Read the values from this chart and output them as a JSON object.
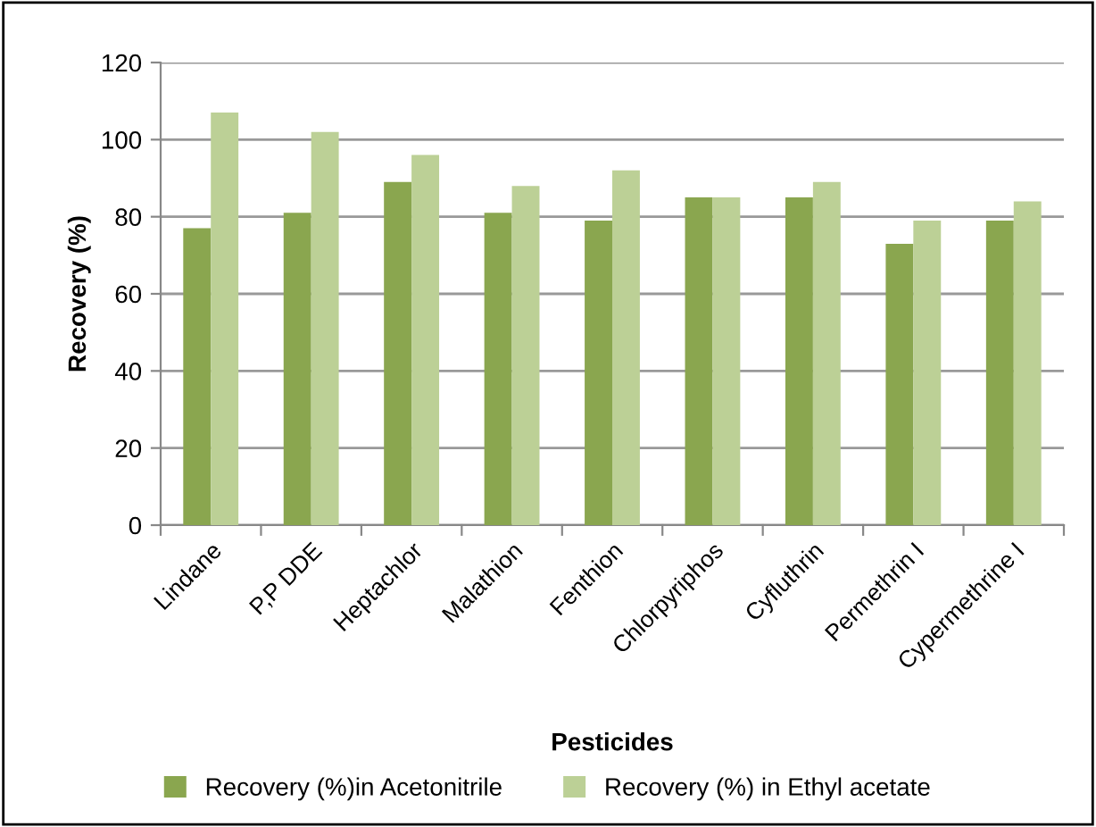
{
  "chart_data": {
    "type": "bar",
    "xlabel": "Pesticides",
    "ylabel": "Recovery (%)",
    "categories": [
      "Lindane",
      "P,P DDE",
      "Heptachlor",
      "Malathion",
      "Fenthion",
      "Chlorpyriphos",
      "Cyfluthrin",
      "Permethrin I",
      "Cypermethrine I"
    ],
    "series": [
      {
        "name": "Recovery (%)in Acetonitrile",
        "color": "#8aa64f",
        "values": [
          77,
          81,
          89,
          81,
          79,
          85,
          85,
          73,
          79
        ]
      },
      {
        "name": "Recovery (%) in Ethyl acetate",
        "color": "#bcd096",
        "values": [
          107,
          102,
          96,
          88,
          92,
          85,
          89,
          79,
          84
        ]
      }
    ],
    "ylim": [
      0,
      120
    ],
    "yticks": [
      0,
      20,
      40,
      60,
      80,
      100,
      120
    ],
    "grid": "y",
    "legend": "bottom"
  }
}
